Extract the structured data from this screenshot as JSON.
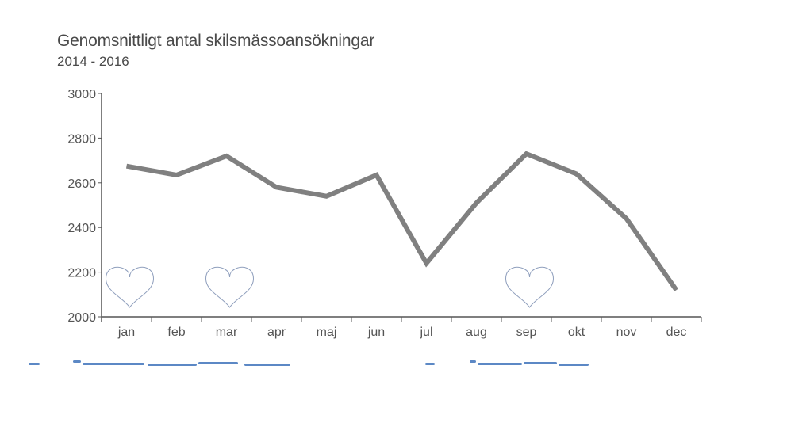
{
  "chart_data": {
    "type": "line",
    "title": "Genomsnittligt antal skilsmässoansökningar",
    "subtitle": "2014 - 2016",
    "categories": [
      "jan",
      "feb",
      "mar",
      "apr",
      "maj",
      "jun",
      "jul",
      "aug",
      "sep",
      "okt",
      "nov",
      "dec"
    ],
    "series": [
      {
        "values": [
          2675,
          2635,
          2720,
          2580,
          2540,
          2635,
          2240,
          2510,
          2730,
          2640,
          2440,
          2120
        ]
      }
    ],
    "yticks": [
      2000,
      2200,
      2400,
      2600,
      2800,
      3000
    ],
    "ylim": [
      2000,
      3000
    ],
    "grid": false,
    "line_color": "#808080",
    "heart_months": [
      "jan",
      "mar",
      "sep"
    ],
    "heart_color": "#8f9fbd"
  }
}
